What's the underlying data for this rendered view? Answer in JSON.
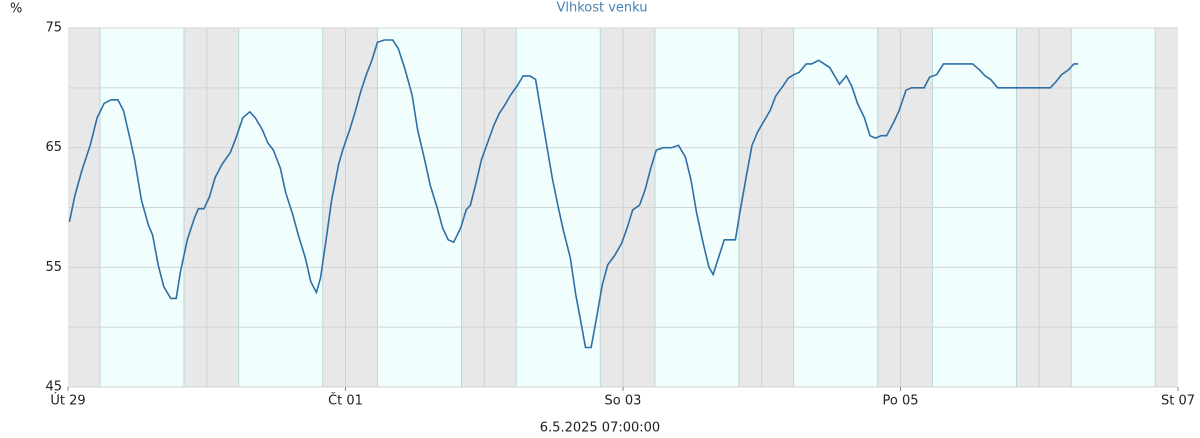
{
  "chart_data": {
    "type": "line",
    "title": "Vlhkost venku",
    "y_label": "%",
    "timestamp": "6.5.2025 07:00:00",
    "xlim": [
      0,
      8
    ],
    "xticks": [
      {
        "value": 0,
        "label": "Út 29"
      },
      {
        "value": 2,
        "label": "Čt 01"
      },
      {
        "value": 4,
        "label": "So 03"
      },
      {
        "value": 6,
        "label": "Po 05"
      },
      {
        "value": 8,
        "label": "St 07"
      }
    ],
    "ylim": [
      45,
      75
    ],
    "yticks": [
      45,
      55,
      65,
      75
    ],
    "yminor_ticks": [
      50,
      60,
      70
    ],
    "grid": true,
    "series": [
      {
        "name": "Vlhkost venku",
        "color": "#2e6fa6",
        "x": [
          0.01,
          0.05,
          0.1,
          0.16,
          0.21,
          0.26,
          0.31,
          0.36,
          0.4,
          0.45,
          0.48,
          0.53,
          0.58,
          0.61,
          0.65,
          0.69,
          0.74,
          0.78,
          0.81,
          0.86,
          0.91,
          0.94,
          0.98,
          1.02,
          1.06,
          1.11,
          1.17,
          1.21,
          1.26,
          1.31,
          1.35,
          1.4,
          1.44,
          1.48,
          1.53,
          1.57,
          1.62,
          1.66,
          1.71,
          1.75,
          1.79,
          1.82,
          1.86,
          1.9,
          1.95,
          1.98,
          2.03,
          2.07,
          2.11,
          2.15,
          2.19,
          2.23,
          2.28,
          2.34,
          2.38,
          2.43,
          2.48,
          2.52,
          2.57,
          2.61,
          2.66,
          2.7,
          2.74,
          2.78,
          2.83,
          2.87,
          2.9,
          2.94,
          2.98,
          3.03,
          3.07,
          3.11,
          3.15,
          3.19,
          3.24,
          3.28,
          3.33,
          3.37,
          3.4,
          3.45,
          3.49,
          3.53,
          3.57,
          3.62,
          3.66,
          3.7,
          3.73,
          3.77,
          3.81,
          3.85,
          3.89,
          3.94,
          3.99,
          4.03,
          4.07,
          4.12,
          4.16,
          4.2,
          4.24,
          4.29,
          4.35,
          4.4,
          4.45,
          4.49,
          4.53,
          4.58,
          4.62,
          4.65,
          4.68,
          4.73,
          4.77,
          4.81,
          4.84,
          4.89,
          4.93,
          4.97,
          5.02,
          5.06,
          5.1,
          5.15,
          5.19,
          5.23,
          5.27,
          5.32,
          5.36,
          5.41,
          5.45,
          5.49,
          5.54,
          5.56,
          5.61,
          5.65,
          5.69,
          5.74,
          5.78,
          5.82,
          5.86,
          5.9,
          5.95,
          5.99,
          6.04,
          6.08,
          6.13,
          6.17,
          6.21,
          6.26,
          6.31,
          6.36,
          6.52,
          6.57,
          6.61,
          6.65,
          6.7,
          6.74,
          7.08,
          7.12,
          7.16,
          7.21,
          7.25,
          7.28
        ],
        "values": [
          58.8,
          61,
          63.1,
          65.2,
          67.5,
          68.7,
          69,
          69,
          68.1,
          65.6,
          64,
          60.6,
          58.5,
          57.7,
          55.2,
          53.4,
          52.4,
          52.4,
          54.6,
          57.3,
          59.1,
          59.9,
          59.9,
          60.9,
          62.5,
          63.6,
          64.6,
          65.8,
          67.5,
          68,
          67.5,
          66.5,
          65.4,
          64.8,
          63.3,
          61.2,
          59.4,
          57.7,
          55.8,
          53.8,
          52.9,
          54.1,
          57.3,
          60.6,
          63.6,
          64.8,
          66.5,
          68,
          69.7,
          71.1,
          72.3,
          73.8,
          74,
          74,
          73.3,
          71.5,
          69.4,
          66.5,
          64,
          61.9,
          60,
          58.3,
          57.3,
          57.1,
          58.3,
          59.8,
          60.2,
          62,
          64,
          65.6,
          66.9,
          67.9,
          68.6,
          69.4,
          70.2,
          71,
          71,
          70.7,
          68.6,
          65.2,
          62.5,
          60.2,
          58.1,
          55.8,
          52.7,
          50.2,
          48.3,
          48.3,
          50.8,
          53.5,
          55.2,
          56,
          57,
          58.3,
          59.8,
          60.2,
          61.5,
          63.3,
          64.8,
          65,
          65,
          65.2,
          64.2,
          62.3,
          59.6,
          56.9,
          55,
          54.4,
          55.5,
          57.3,
          57.3,
          57.3,
          59.4,
          62.7,
          65.2,
          66.3,
          67.3,
          68.1,
          69.3,
          70.1,
          70.8,
          71.1,
          71.3,
          72,
          72,
          72.3,
          72,
          71.7,
          70.7,
          70.3,
          71,
          70.1,
          68.7,
          67.5,
          66,
          65.8,
          66,
          66,
          67.1,
          68.1,
          69.8,
          70,
          70,
          70,
          70.9,
          71.1,
          72,
          72,
          72,
          71.5,
          71,
          70.7,
          70,
          70,
          70,
          70.5,
          71.1,
          71.5,
          72,
          72
        ]
      }
    ]
  }
}
